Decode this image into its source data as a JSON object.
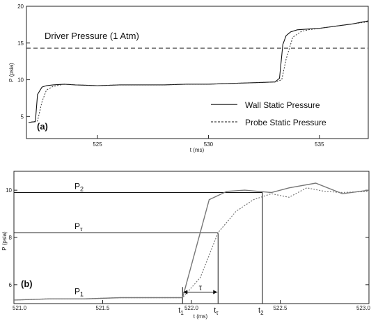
{
  "chart_data": [
    {
      "panel_label": "(a)",
      "type": "line",
      "xlabel": "t (ms)",
      "ylabel": "P (psia)",
      "xlim": [
        521.8,
        537.2
      ],
      "ylim": [
        2,
        20
      ],
      "x_ticks": [
        "525",
        "530",
        "535"
      ],
      "y_ticks": [
        "5",
        "10",
        "15",
        "20"
      ],
      "reference_line": {
        "label": "Driver Pressure (1  Atm)",
        "value": 14.3
      },
      "legend": {
        "position": "bottom-right"
      },
      "series": [
        {
          "name": "Wall Static Pressure",
          "style": "solid",
          "x": [
            521.9,
            522.2,
            522.3,
            522.5,
            522.7,
            523.0,
            523.5,
            524.0,
            525.0,
            526.0,
            527.0,
            528.0,
            529.0,
            530.0,
            531.0,
            532.0,
            533.0,
            533.2,
            533.35,
            533.5,
            533.7,
            534.0,
            534.5,
            535.0,
            535.5,
            536.0,
            536.5,
            537.0,
            537.2
          ],
          "y": [
            4.2,
            4.3,
            8.0,
            9.0,
            9.2,
            9.3,
            9.4,
            9.3,
            9.2,
            9.3,
            9.3,
            9.3,
            9.4,
            9.4,
            9.5,
            9.6,
            9.7,
            10.2,
            14.8,
            16.0,
            16.5,
            16.8,
            16.9,
            17.0,
            17.2,
            17.4,
            17.6,
            17.9,
            18.0
          ]
        },
        {
          "name": "Probe Static Pressure",
          "style": "dotted",
          "x": [
            521.9,
            522.3,
            522.5,
            522.7,
            523.0,
            523.5,
            524.0,
            525.0,
            526.0,
            527.0,
            528.0,
            529.0,
            530.0,
            531.0,
            532.0,
            533.0,
            533.3,
            533.5,
            533.8,
            534.2,
            534.5,
            535.0,
            535.5,
            536.0,
            536.5,
            537.0,
            537.2
          ],
          "y": [
            4.2,
            4.4,
            7.0,
            8.6,
            9.1,
            9.4,
            9.3,
            9.2,
            9.3,
            9.3,
            9.3,
            9.4,
            9.4,
            9.5,
            9.6,
            9.7,
            10.0,
            12.8,
            15.8,
            16.6,
            16.8,
            17.0,
            17.2,
            17.4,
            17.6,
            17.8,
            17.9
          ]
        }
      ]
    },
    {
      "panel_label": "(b)",
      "type": "line",
      "xlabel": "t (ms)",
      "ylabel": "P (psia)",
      "xlim": [
        521.0,
        523.0
      ],
      "ylim": [
        5.2,
        10.8
      ],
      "x_ticks": [
        "521.0",
        "521.5",
        "522.0",
        "522.5",
        "523.0"
      ],
      "y_ticks": [
        "6",
        "8",
        "10"
      ],
      "series": [
        {
          "name": "Wall Static Pressure",
          "style": "solid",
          "x": [
            521.0,
            521.2,
            521.4,
            521.6,
            521.8,
            521.95,
            522.1,
            522.2,
            522.3,
            522.45,
            522.55,
            522.7,
            522.85,
            523.0
          ],
          "y": [
            5.35,
            5.4,
            5.4,
            5.45,
            5.45,
            5.45,
            9.6,
            9.95,
            10.0,
            9.9,
            10.1,
            10.3,
            9.85,
            10.0
          ]
        },
        {
          "name": "Probe Static Pressure",
          "style": "dotted",
          "x": [
            521.0,
            521.2,
            521.4,
            521.6,
            521.8,
            521.95,
            522.05,
            522.15,
            522.25,
            522.35,
            522.45,
            522.55,
            522.65,
            522.75,
            522.85,
            523.0
          ],
          "y": [
            5.35,
            5.4,
            5.4,
            5.45,
            5.45,
            5.45,
            6.3,
            8.2,
            9.1,
            9.6,
            9.85,
            9.7,
            10.1,
            9.95,
            9.9,
            9.95
          ]
        }
      ],
      "annotations": {
        "levels": [
          {
            "label_main": "P",
            "label_sub": "2",
            "value": 9.9
          },
          {
            "label_main": "P",
            "label_sub": "τ",
            "value": 8.2
          },
          {
            "label_main": "P",
            "label_sub": "1",
            "value": 5.45
          }
        ],
        "time_marks": [
          {
            "label_main": "t",
            "label_sub": "1",
            "value": 521.95
          },
          {
            "label_main": "t",
            "label_sub": "τ",
            "value": 522.15
          },
          {
            "label_main": "t",
            "label_sub": "2",
            "value": 522.4
          }
        ],
        "interval_label": "τ"
      }
    }
  ]
}
